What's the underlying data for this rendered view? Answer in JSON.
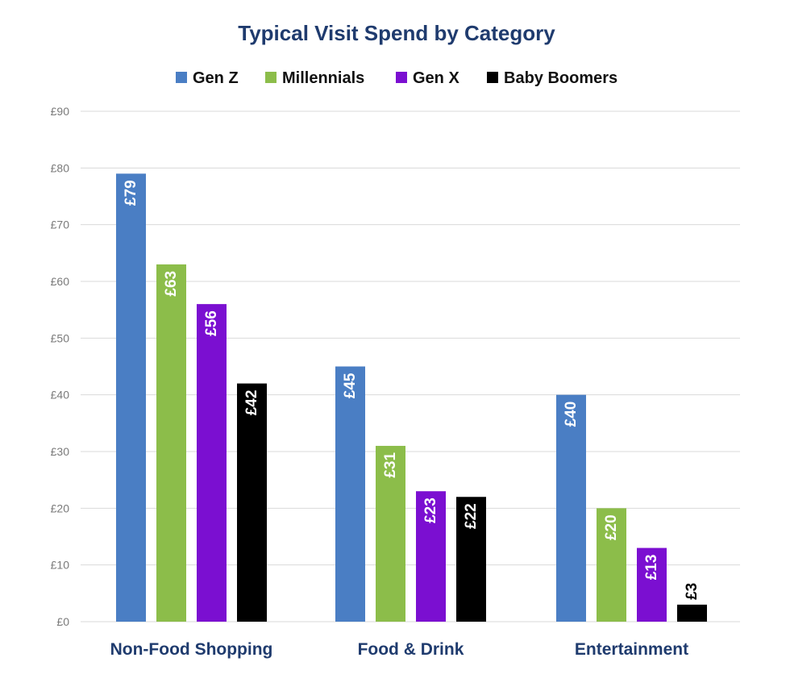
{
  "chart_data": {
    "type": "bar",
    "title": "Typical Visit Spend by Category",
    "xlabel": "",
    "ylabel": "",
    "ylim": [
      0,
      90
    ],
    "yticks": [
      0,
      10,
      20,
      30,
      40,
      50,
      60,
      70,
      80,
      90
    ],
    "ytick_labels": [
      "£0",
      "£10",
      "£20",
      "£30",
      "£40",
      "£50",
      "£60",
      "£70",
      "£80",
      "£90"
    ],
    "categories": [
      "Non-Food Shopping",
      "Food & Drink",
      "Entertainment"
    ],
    "legend_position": "top",
    "grid": true,
    "series": [
      {
        "name": "Gen Z",
        "color": "#4a7ec4",
        "label_color": "#ffffff",
        "values": [
          79,
          45,
          40
        ],
        "labels": [
          "£79",
          "£45",
          "£40"
        ]
      },
      {
        "name": "Millennials",
        "color": "#8cbd4a",
        "label_color": "#ffffff",
        "values": [
          63,
          31,
          20
        ],
        "labels": [
          "£63",
          "£31",
          "£20"
        ]
      },
      {
        "name": "Gen X",
        "color": "#7b0fd1",
        "label_color": "#ffffff",
        "values": [
          56,
          23,
          13
        ],
        "labels": [
          "£56",
          "£23",
          "£13"
        ]
      },
      {
        "name": "Baby Boomers",
        "color": "#000000",
        "label_color": "#ffffff",
        "values": [
          42,
          22,
          3
        ],
        "labels": [
          "£42",
          "£22",
          "£3"
        ]
      }
    ]
  }
}
